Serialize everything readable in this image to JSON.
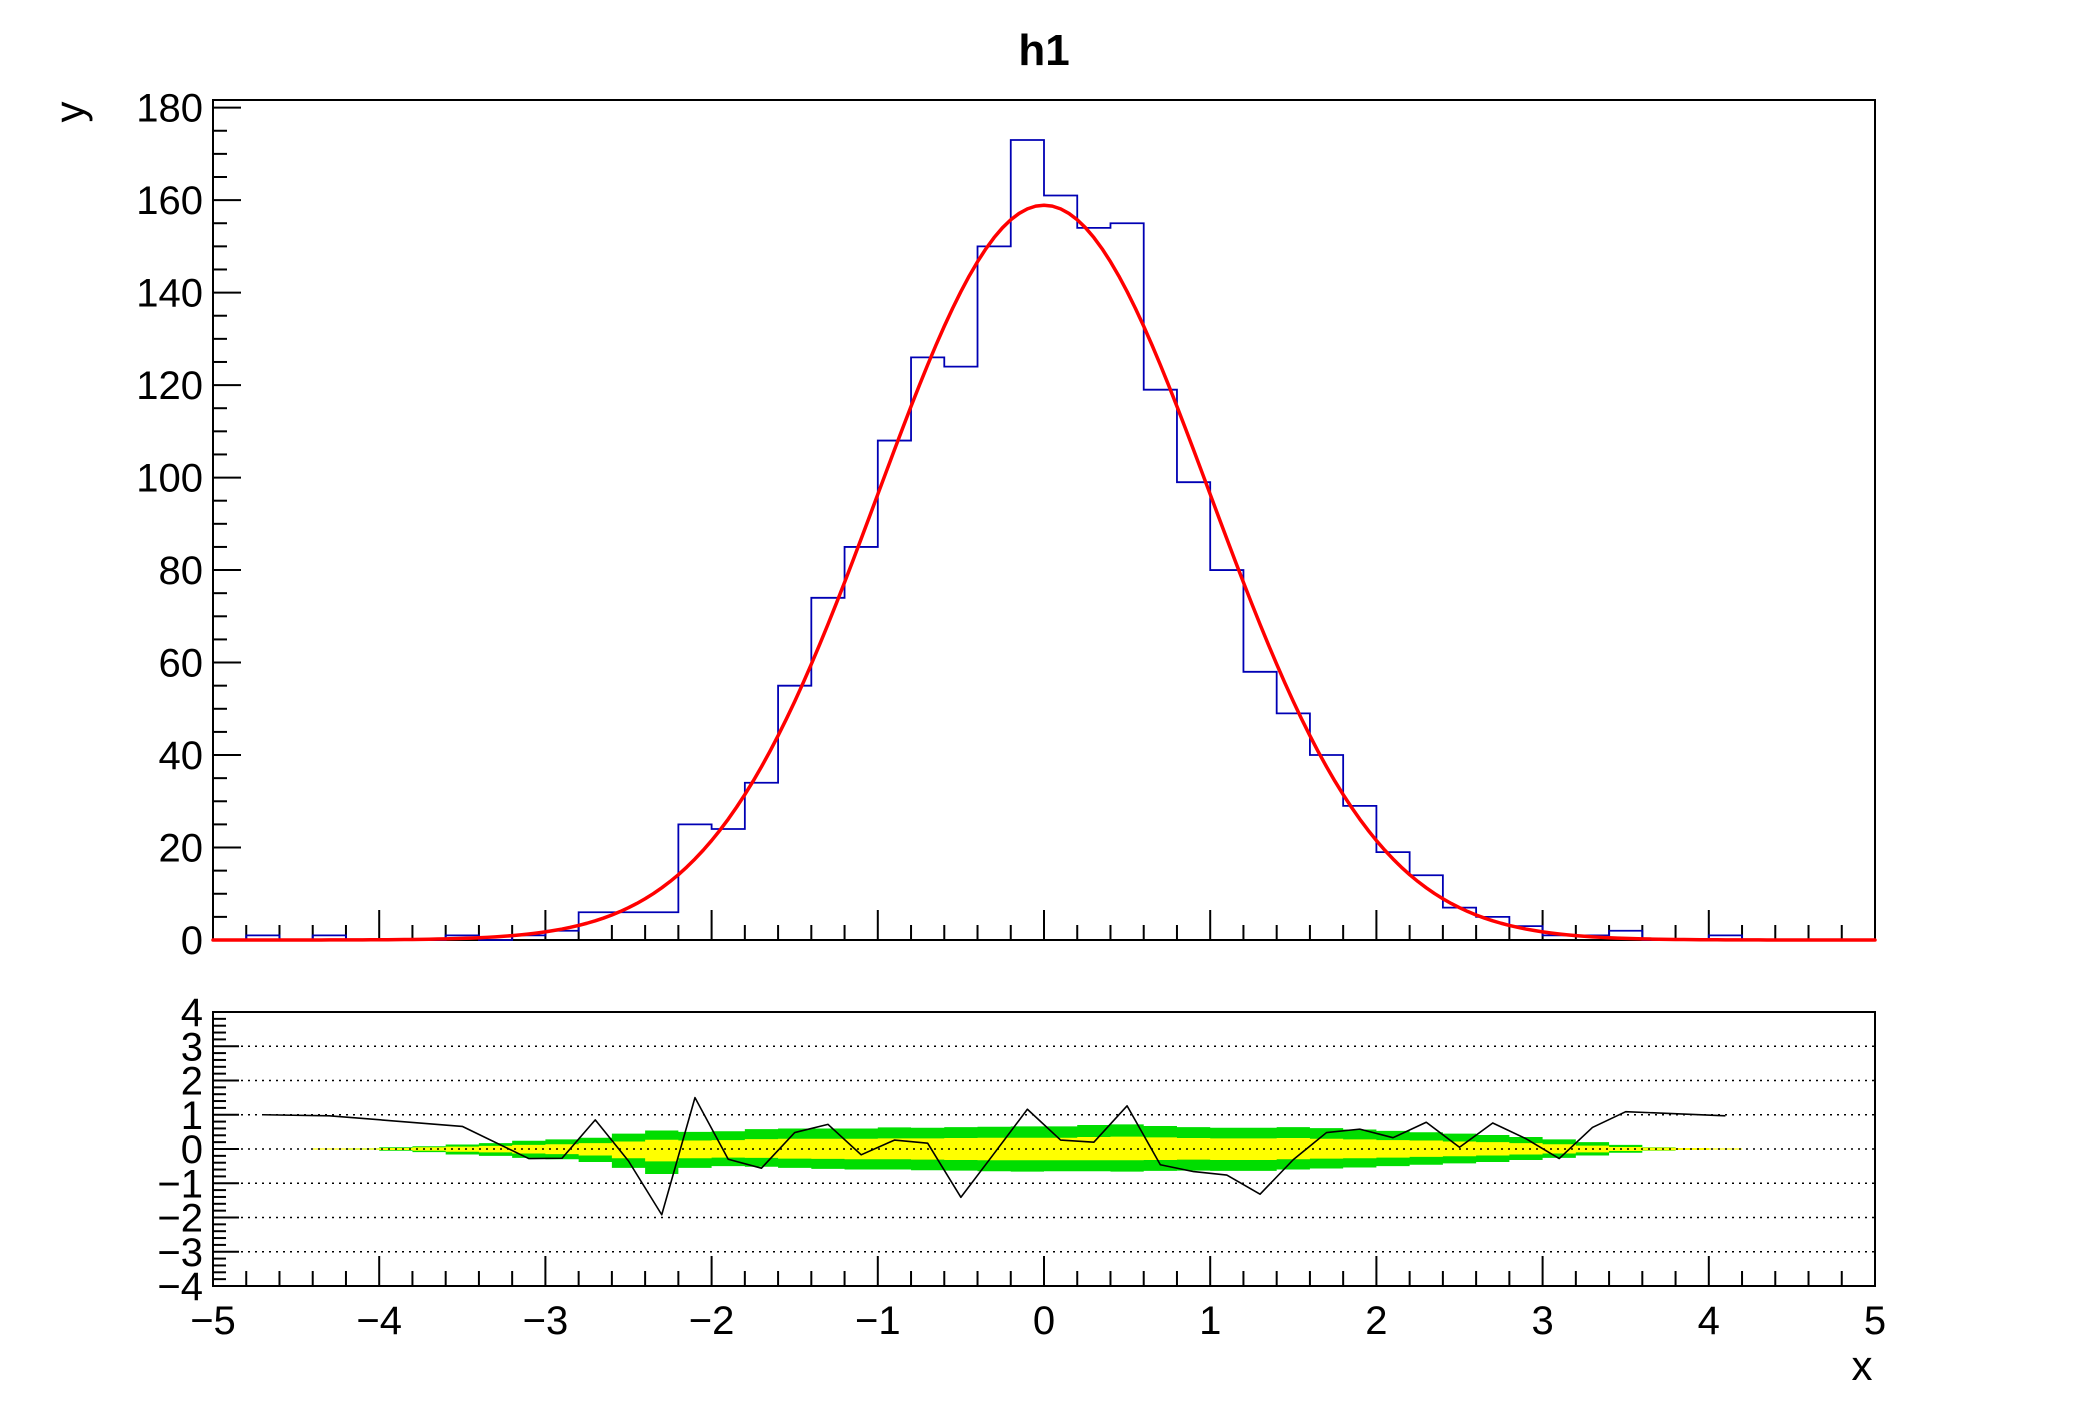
{
  "chart_data": {
    "type": "histogram",
    "title": "h1",
    "xlabel": "x",
    "ylabel": "y",
    "colors": {
      "hist_line": "#0000b4",
      "fit_line": "#ff0000",
      "band_2sigma_green": "#00dd00",
      "band_1sigma_yellow": "#ffff00",
      "pull_line": "#000000",
      "frame": "#000000"
    },
    "top_panel": {
      "xlim": [
        -5,
        5
      ],
      "ylim": [
        0,
        181.65
      ],
      "ytick_values": [
        0,
        20,
        40,
        60,
        80,
        100,
        120,
        140,
        160,
        180
      ],
      "ytick_labels": [
        "0",
        "20",
        "40",
        "60",
        "80",
        "100",
        "120",
        "140",
        "160",
        "180"
      ],
      "y_minor_step": 5,
      "xtick_major_values": [
        -5,
        -4,
        -3,
        -2,
        -1,
        0,
        1,
        2,
        3,
        4,
        5
      ],
      "x_minor_step": 0.2,
      "grid": "off",
      "hist": {
        "xmin": -5,
        "bin_width": 0.2,
        "counts": [
          0,
          1,
          0,
          1,
          0,
          0,
          0,
          1,
          0,
          1,
          2,
          6,
          6,
          6,
          25,
          24,
          34,
          55,
          74,
          85,
          108,
          126,
          124,
          150,
          173,
          161,
          154,
          155,
          119,
          99,
          80,
          58,
          49,
          40,
          29,
          19,
          14,
          7,
          5,
          3,
          1,
          1,
          2,
          0,
          0,
          1,
          0,
          0,
          0,
          0
        ]
      },
      "fit": {
        "shape": "gaussian",
        "amplitude": 158.9,
        "mean": 0.0,
        "sigma": 1.0,
        "range": [
          -5,
          5
        ]
      }
    },
    "bottom_panel": {
      "xlim": [
        -5,
        5
      ],
      "ylim": [
        -4,
        4
      ],
      "ytick_values": [
        -4,
        -3,
        -2,
        -1,
        0,
        1,
        2,
        3,
        4
      ],
      "ytick_labels": [
        "−4",
        "−3",
        "−2",
        "−1",
        "0",
        "1",
        "2",
        "3",
        "4"
      ],
      "y_minor_step": 0.2,
      "xtick_labels": [
        "−5",
        "−4",
        "−3",
        "−2",
        "−1",
        "0",
        "1",
        "2",
        "3",
        "4",
        "5"
      ],
      "gridline_values": [
        -3,
        -2,
        -1,
        0,
        1,
        2,
        3
      ],
      "grid_style": "dotted",
      "pull_points": [
        [
          -4.7,
          1.0
        ],
        [
          -4.3,
          0.97
        ],
        [
          -3.5,
          0.66
        ],
        [
          -3.1,
          -0.28
        ],
        [
          -2.9,
          -0.27
        ],
        [
          -2.7,
          0.85
        ],
        [
          -2.5,
          -0.35
        ],
        [
          -2.3,
          -1.92
        ],
        [
          -2.1,
          1.5
        ],
        [
          -1.9,
          -0.3
        ],
        [
          -1.7,
          -0.56
        ],
        [
          -1.5,
          0.48
        ],
        [
          -1.3,
          0.72
        ],
        [
          -1.1,
          -0.17
        ],
        [
          -0.9,
          0.26
        ],
        [
          -0.7,
          0.17
        ],
        [
          -0.5,
          -1.41
        ],
        [
          -0.3,
          -0.13
        ],
        [
          -0.1,
          1.16
        ],
        [
          0.1,
          0.26
        ],
        [
          0.3,
          0.2
        ],
        [
          0.5,
          1.26
        ],
        [
          0.7,
          -0.46
        ],
        [
          0.9,
          -0.66
        ],
        [
          1.1,
          -0.76
        ],
        [
          1.3,
          -1.32
        ],
        [
          1.5,
          -0.31
        ],
        [
          1.7,
          0.48
        ],
        [
          1.9,
          0.58
        ],
        [
          2.1,
          0.33
        ],
        [
          2.3,
          0.78
        ],
        [
          2.5,
          0.05
        ],
        [
          2.7,
          0.76
        ],
        [
          2.9,
          0.3
        ],
        [
          3.1,
          -0.28
        ],
        [
          3.3,
          0.63
        ],
        [
          3.5,
          1.09
        ],
        [
          4.1,
          0.97
        ]
      ],
      "bands": {
        "bin_centers": [
          -4.3,
          -4.1,
          -3.9,
          -3.7,
          -3.5,
          -3.3,
          -3.1,
          -2.9,
          -2.7,
          -2.5,
          -2.3,
          -2.1,
          -1.9,
          -1.7,
          -1.5,
          -1.3,
          -1.1,
          -0.9,
          -0.7,
          -0.5,
          -0.3,
          -0.1,
          0.1,
          0.3,
          0.5,
          0.7,
          0.9,
          1.1,
          1.3,
          1.5,
          1.7,
          1.9,
          2.1,
          2.3,
          2.5,
          2.7,
          2.9,
          3.1,
          3.3,
          3.5,
          3.7,
          3.9,
          4.1
        ],
        "green_up": [
          0,
          0.02,
          0.05,
          0.08,
          0.13,
          0.17,
          0.24,
          0.28,
          0.33,
          0.45,
          0.54,
          0.5,
          0.52,
          0.58,
          0.6,
          0.6,
          0.6,
          0.63,
          0.62,
          0.64,
          0.65,
          0.66,
          0.66,
          0.7,
          0.72,
          0.67,
          0.64,
          0.62,
          0.62,
          0.64,
          0.61,
          0.57,
          0.53,
          0.49,
          0.45,
          0.41,
          0.35,
          0.28,
          0.2,
          0.12,
          0.05,
          0.03,
          0
        ],
        "green_dn": [
          0,
          0.02,
          0.05,
          0.09,
          0.16,
          0.2,
          0.26,
          0.3,
          0.38,
          0.55,
          0.73,
          0.55,
          0.5,
          0.52,
          0.55,
          0.58,
          0.6,
          0.6,
          0.62,
          0.63,
          0.65,
          0.66,
          0.65,
          0.65,
          0.66,
          0.64,
          0.63,
          0.64,
          0.64,
          0.6,
          0.57,
          0.54,
          0.5,
          0.46,
          0.42,
          0.38,
          0.32,
          0.26,
          0.19,
          0.11,
          0.05,
          0.03,
          0
        ],
        "yellow_up": [
          0.02,
          0.02,
          0.03,
          0.05,
          0.07,
          0.09,
          0.12,
          0.14,
          0.17,
          0.22,
          0.27,
          0.25,
          0.26,
          0.29,
          0.3,
          0.3,
          0.3,
          0.31,
          0.31,
          0.32,
          0.33,
          0.33,
          0.33,
          0.35,
          0.36,
          0.34,
          0.32,
          0.31,
          0.31,
          0.32,
          0.3,
          0.28,
          0.26,
          0.25,
          0.22,
          0.2,
          0.17,
          0.14,
          0.1,
          0.06,
          0.04,
          0.03,
          0.02
        ],
        "yellow_dn": [
          0.02,
          0.02,
          0.03,
          0.05,
          0.08,
          0.1,
          0.13,
          0.15,
          0.19,
          0.27,
          0.36,
          0.27,
          0.25,
          0.26,
          0.28,
          0.29,
          0.3,
          0.3,
          0.31,
          0.32,
          0.33,
          0.33,
          0.33,
          0.33,
          0.33,
          0.32,
          0.31,
          0.32,
          0.32,
          0.3,
          0.28,
          0.27,
          0.25,
          0.23,
          0.21,
          0.19,
          0.16,
          0.13,
          0.1,
          0.06,
          0.04,
          0.03,
          0.02
        ]
      }
    }
  }
}
